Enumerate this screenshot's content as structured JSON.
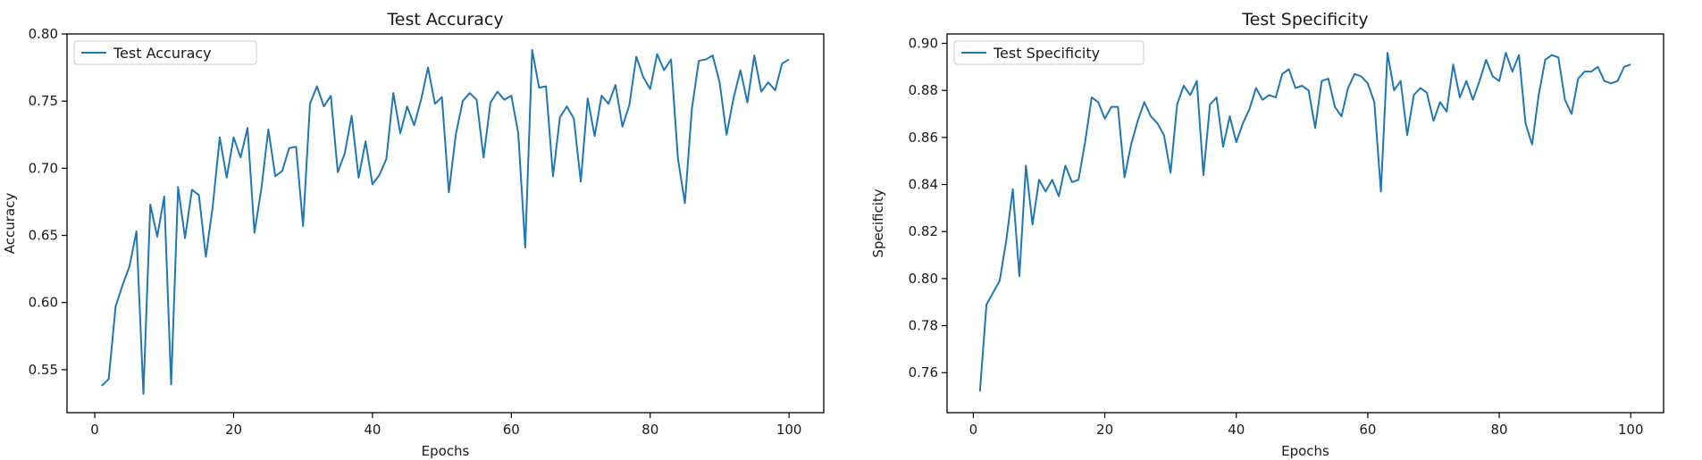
{
  "chart_data": [
    {
      "type": "line",
      "title": "Test  Accuracy",
      "xlabel": "Epochs",
      "ylabel": "Accuracy",
      "xlim": [
        -4,
        105
      ],
      "ylim": [
        0.518,
        0.8
      ],
      "xticks": [
        0,
        20,
        40,
        60,
        80,
        100
      ],
      "xtick_labels": [
        "0",
        "20",
        "40",
        "60",
        "80",
        "100"
      ],
      "yticks": [
        0.55,
        0.6,
        0.65,
        0.7,
        0.75,
        0.8
      ],
      "ytick_labels": [
        "0.55",
        "0.60",
        "0.65",
        "0.70",
        "0.75",
        "0.80"
      ],
      "grid": false,
      "legend_position": "upper-left",
      "color": "#1f77b4",
      "series": [
        {
          "name": "Test  Accuracy",
          "x": [
            1,
            2,
            3,
            4,
            5,
            6,
            7,
            8,
            9,
            10,
            11,
            12,
            13,
            14,
            15,
            16,
            17,
            18,
            19,
            20,
            21,
            22,
            23,
            24,
            25,
            26,
            27,
            28,
            29,
            30,
            31,
            32,
            33,
            34,
            35,
            36,
            37,
            38,
            39,
            40,
            41,
            42,
            43,
            44,
            45,
            46,
            47,
            48,
            49,
            50,
            51,
            52,
            53,
            54,
            55,
            56,
            57,
            58,
            59,
            60,
            61,
            62,
            63,
            64,
            65,
            66,
            67,
            68,
            69,
            70,
            71,
            72,
            73,
            74,
            75,
            76,
            77,
            78,
            79,
            80,
            81,
            82,
            83,
            84,
            85,
            86,
            87,
            88,
            89,
            90,
            91,
            92,
            93,
            94,
            95,
            96,
            97,
            98,
            99,
            100
          ],
          "values": [
            0.538,
            0.543,
            0.597,
            0.613,
            0.627,
            0.653,
            0.532,
            0.673,
            0.649,
            0.679,
            0.539,
            0.686,
            0.648,
            0.684,
            0.68,
            0.634,
            0.672,
            0.723,
            0.693,
            0.723,
            0.708,
            0.73,
            0.652,
            0.685,
            0.729,
            0.694,
            0.698,
            0.715,
            0.716,
            0.657,
            0.748,
            0.761,
            0.746,
            0.754,
            0.697,
            0.711,
            0.739,
            0.693,
            0.72,
            0.688,
            0.695,
            0.707,
            0.756,
            0.726,
            0.746,
            0.732,
            0.751,
            0.775,
            0.748,
            0.753,
            0.682,
            0.725,
            0.75,
            0.756,
            0.751,
            0.708,
            0.749,
            0.757,
            0.751,
            0.754,
            0.726,
            0.641,
            0.788,
            0.76,
            0.761,
            0.694,
            0.738,
            0.746,
            0.737,
            0.69,
            0.752,
            0.724,
            0.754,
            0.748,
            0.762,
            0.731,
            0.747,
            0.783,
            0.768,
            0.759,
            0.785,
            0.773,
            0.781,
            0.707,
            0.674,
            0.744,
            0.78,
            0.781,
            0.784,
            0.764,
            0.725,
            0.752,
            0.773,
            0.749,
            0.784,
            0.757,
            0.764,
            0.758,
            0.778,
            0.781
          ]
        }
      ]
    },
    {
      "type": "line",
      "title": "Test  Specificity",
      "xlabel": "Epochs",
      "ylabel": "Specificity",
      "xlim": [
        -4,
        105
      ],
      "ylim": [
        0.743,
        0.904
      ],
      "xticks": [
        0,
        20,
        40,
        60,
        80,
        100
      ],
      "xtick_labels": [
        "0",
        "20",
        "40",
        "60",
        "80",
        "100"
      ],
      "yticks": [
        0.76,
        0.78,
        0.8,
        0.82,
        0.84,
        0.86,
        0.88,
        0.9
      ],
      "ytick_labels": [
        "0.76",
        "0.78",
        "0.80",
        "0.82",
        "0.84",
        "0.86",
        "0.88",
        "0.90"
      ],
      "grid": false,
      "legend_position": "upper-left",
      "color": "#1f77b4",
      "series": [
        {
          "name": "Test  Specificity",
          "x": [
            1,
            2,
            3,
            4,
            5,
            6,
            7,
            8,
            9,
            10,
            11,
            12,
            13,
            14,
            15,
            16,
            17,
            18,
            19,
            20,
            21,
            22,
            23,
            24,
            25,
            26,
            27,
            28,
            29,
            30,
            31,
            32,
            33,
            34,
            35,
            36,
            37,
            38,
            39,
            40,
            41,
            42,
            43,
            44,
            45,
            46,
            47,
            48,
            49,
            50,
            51,
            52,
            53,
            54,
            55,
            56,
            57,
            58,
            59,
            60,
            61,
            62,
            63,
            64,
            65,
            66,
            67,
            68,
            69,
            70,
            71,
            72,
            73,
            74,
            75,
            76,
            77,
            78,
            79,
            80,
            81,
            82,
            83,
            84,
            85,
            86,
            87,
            88,
            89,
            90,
            91,
            92,
            93,
            94,
            95,
            96,
            97,
            98,
            99,
            100
          ],
          "values": [
            0.752,
            0.789,
            0.794,
            0.799,
            0.816,
            0.838,
            0.801,
            0.848,
            0.823,
            0.842,
            0.837,
            0.842,
            0.835,
            0.848,
            0.841,
            0.842,
            0.858,
            0.877,
            0.875,
            0.868,
            0.873,
            0.873,
            0.843,
            0.857,
            0.867,
            0.875,
            0.869,
            0.866,
            0.861,
            0.845,
            0.874,
            0.882,
            0.878,
            0.884,
            0.844,
            0.874,
            0.877,
            0.856,
            0.869,
            0.858,
            0.866,
            0.872,
            0.881,
            0.876,
            0.878,
            0.877,
            0.887,
            0.889,
            0.881,
            0.882,
            0.88,
            0.864,
            0.884,
            0.885,
            0.873,
            0.869,
            0.881,
            0.887,
            0.886,
            0.883,
            0.875,
            0.837,
            0.896,
            0.88,
            0.884,
            0.861,
            0.878,
            0.881,
            0.879,
            0.867,
            0.875,
            0.871,
            0.891,
            0.877,
            0.884,
            0.876,
            0.884,
            0.893,
            0.886,
            0.884,
            0.896,
            0.888,
            0.895,
            0.866,
            0.857,
            0.878,
            0.893,
            0.895,
            0.894,
            0.876,
            0.87,
            0.885,
            0.888,
            0.888,
            0.89,
            0.884,
            0.883,
            0.884,
            0.89,
            0.891
          ]
        }
      ]
    }
  ]
}
